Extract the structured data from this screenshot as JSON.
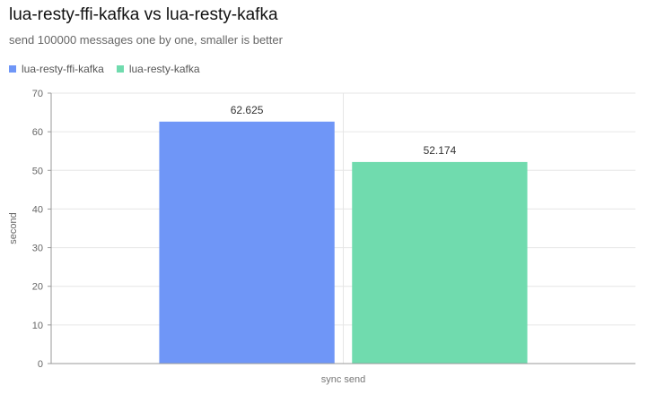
{
  "chart_data": {
    "type": "bar",
    "title": "lua-resty-ffi-kafka vs lua-resty-kafka",
    "subtitle": "send 100000 messages one by one, smaller is better",
    "categories": [
      "sync send"
    ],
    "series": [
      {
        "name": "lua-resty-ffi-kafka",
        "values": [
          62.625
        ],
        "color": "#6f96f7"
      },
      {
        "name": "lua-resty-kafka",
        "values": [
          52.174
        ],
        "color": "#70dbae"
      }
    ],
    "xlabel": "",
    "ylabel": "second",
    "ylim": [
      0,
      70
    ],
    "yticks": [
      0,
      10,
      20,
      30,
      40,
      50,
      60,
      70
    ],
    "data_labels": [
      "62.625",
      "52.174"
    ],
    "grid": true,
    "legend": "top-left"
  }
}
